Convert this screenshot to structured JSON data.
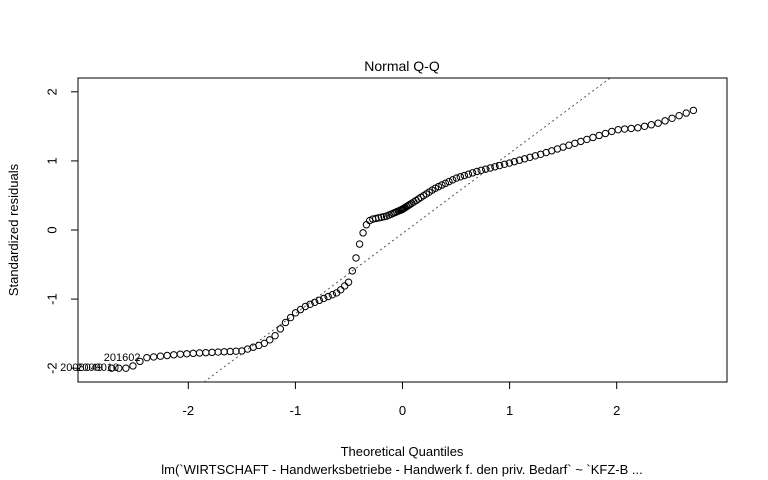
{
  "chart_data": {
    "type": "scatter",
    "title": "Normal Q-Q",
    "xlabel": "Theoretical Quantiles",
    "ylabel": "Standardized residuals",
    "subtitle": "lm(`WIRTSCHAFT - Handwerksbetriebe - Handwerk f. den priv. Bedarf` ~ `KFZ-B ...",
    "xlim": [
      -3.03,
      3.03
    ],
    "ylim": [
      -2.2,
      2.2
    ],
    "xticks": [
      "-2",
      "-1",
      "0",
      "1",
      "2"
    ],
    "yticks": [
      "-2",
      "-1",
      "0",
      "1",
      "2"
    ],
    "reference_line": {
      "slope": 1.16,
      "intercept": -0.05,
      "style": "dotted"
    },
    "point_labels": [
      {
        "text": "201602",
        "x": -2.4,
        "y": -1.85
      },
      {
        "text": "2008049",
        "x": -2.75,
        "y": -2.0
      },
      {
        "text": "2009010",
        "x": -2.6,
        "y": -2.0
      }
    ],
    "quantile_knots": [
      [
        -2.75,
        -2.0
      ],
      [
        -2.55,
        -2.0
      ],
      [
        -2.4,
        -1.85
      ],
      [
        -2.1,
        -1.8
      ],
      [
        -1.9,
        -1.78
      ],
      [
        -1.5,
        -1.75
      ],
      [
        -1.3,
        -1.65
      ],
      [
        -1.2,
        -1.55
      ],
      [
        -1.1,
        -1.35
      ],
      [
        -1.0,
        -1.2
      ],
      [
        -0.9,
        -1.1
      ],
      [
        -0.75,
        -1.0
      ],
      [
        -0.6,
        -0.9
      ],
      [
        -0.5,
        -0.75
      ],
      [
        -0.45,
        -0.5
      ],
      [
        -0.4,
        -0.2
      ],
      [
        -0.35,
        0.05
      ],
      [
        -0.3,
        0.15
      ],
      [
        -0.15,
        0.2
      ],
      [
        0.0,
        0.3
      ],
      [
        0.15,
        0.45
      ],
      [
        0.3,
        0.6
      ],
      [
        0.5,
        0.75
      ],
      [
        0.7,
        0.85
      ],
      [
        1.0,
        0.97
      ],
      [
        1.3,
        1.1
      ],
      [
        1.6,
        1.25
      ],
      [
        1.8,
        1.35
      ],
      [
        2.0,
        1.45
      ],
      [
        2.2,
        1.48
      ],
      [
        2.4,
        1.55
      ],
      [
        2.75,
        1.75
      ]
    ],
    "n_points": 130
  }
}
